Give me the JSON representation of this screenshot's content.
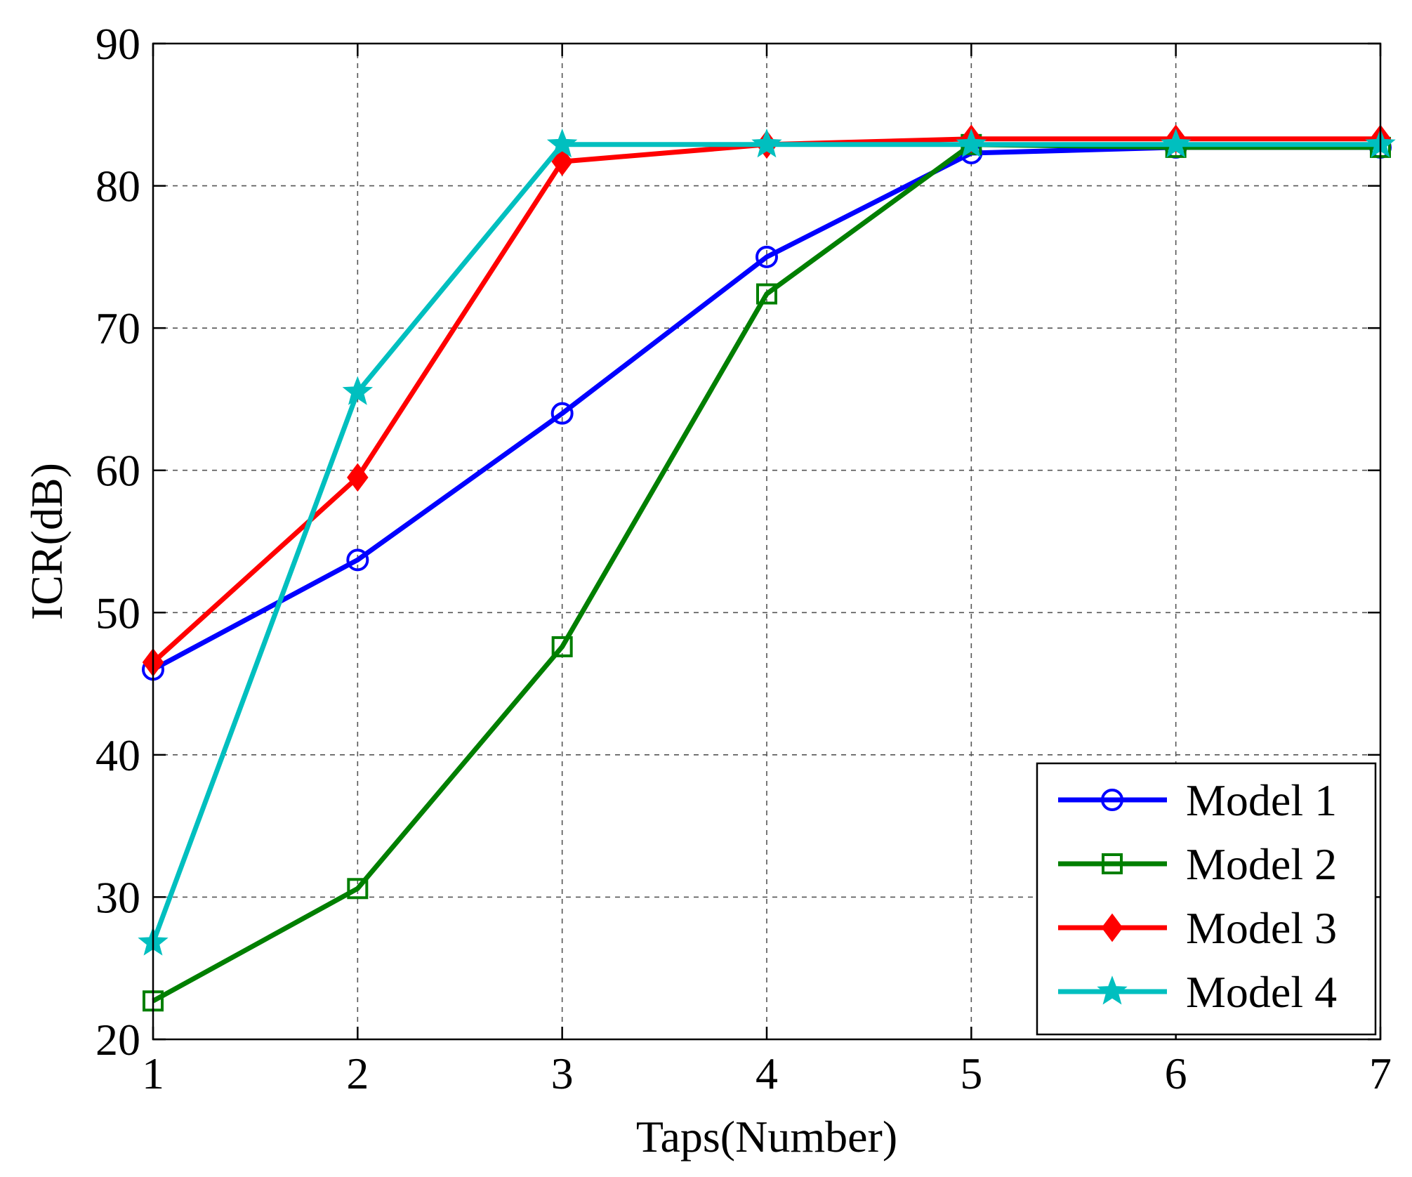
{
  "chart_data": {
    "type": "line",
    "title": "",
    "xlabel": "Taps(Number)",
    "ylabel": "ICR(dB)",
    "xlim": [
      1,
      7
    ],
    "ylim": [
      20,
      90
    ],
    "x_ticks": [
      1,
      2,
      3,
      4,
      5,
      6,
      7
    ],
    "y_ticks": [
      20,
      30,
      40,
      50,
      60,
      70,
      80,
      90
    ],
    "grid": true,
    "legend_position": "bottom-right",
    "x": [
      1,
      2,
      3,
      4,
      5,
      6,
      7
    ],
    "series": [
      {
        "name": "Model 1",
        "color": "#0000ff",
        "marker": "circle",
        "values": [
          46.0,
          53.7,
          64.0,
          75.0,
          82.3,
          82.7,
          82.7
        ]
      },
      {
        "name": "Model 2",
        "color": "#007f00",
        "marker": "square",
        "values": [
          22.7,
          30.6,
          47.6,
          72.4,
          82.9,
          82.7,
          82.7
        ]
      },
      {
        "name": "Model 3",
        "color": "#ff0000",
        "marker": "diamond",
        "values": [
          46.5,
          59.5,
          81.7,
          82.9,
          83.3,
          83.3,
          83.3
        ]
      },
      {
        "name": "Model 4",
        "color": "#00bfbf",
        "marker": "star",
        "values": [
          26.8,
          65.5,
          82.9,
          82.9,
          82.9,
          82.9,
          82.9
        ]
      }
    ]
  }
}
